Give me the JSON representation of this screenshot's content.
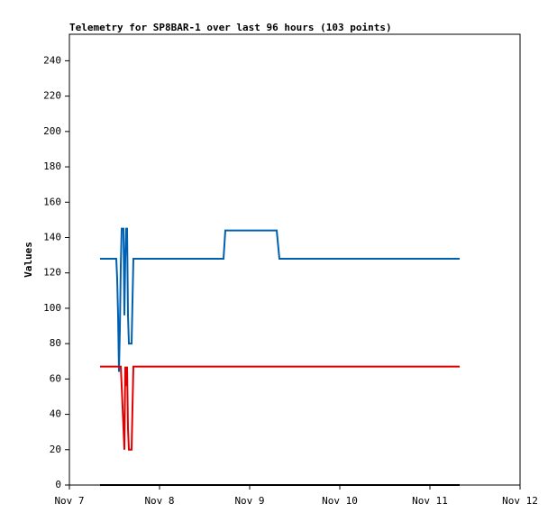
{
  "chart_data": {
    "type": "line",
    "title": "Telemetry for SP8BAR-1 over last 96 hours (103 points)",
    "y_label": "Values",
    "x": [
      7.34,
      7.52,
      7.53,
      7.54,
      7.55,
      7.56,
      7.57,
      7.58,
      7.6,
      7.61,
      7.62,
      7.63,
      7.64,
      7.65,
      7.66,
      7.69,
      7.7,
      7.71,
      8.71,
      8.73,
      9.3,
      9.33,
      11.33
    ],
    "series": [
      {
        "color": "#0060b0",
        "values": [
          128,
          128,
          117,
          96,
          64,
          88,
          124,
          145,
          145,
          96,
          128,
          145,
          145,
          96,
          80,
          80,
          104,
          128,
          128,
          144,
          144,
          128,
          128
        ]
      },
      {
        "color": "#e00000",
        "values": [
          67,
          67,
          67,
          67,
          67,
          67,
          67,
          56,
          32,
          20,
          67,
          56,
          67,
          32,
          20,
          20,
          44,
          67,
          67,
          67,
          67,
          67,
          67
        ]
      },
      {
        "color": "#000000",
        "values": [
          0,
          0,
          0,
          0,
          0,
          0,
          0,
          0,
          0,
          0,
          0,
          0,
          0,
          0,
          0,
          0,
          0,
          0,
          0,
          0,
          0,
          0,
          0
        ]
      }
    ],
    "xlim": [
      7,
      12
    ],
    "xticks": [
      {
        "value": 7,
        "label": "Nov 7"
      },
      {
        "value": 8,
        "label": "Nov 8"
      },
      {
        "value": 9,
        "label": "Nov 9"
      },
      {
        "value": 10,
        "label": "Nov 10"
      },
      {
        "value": 11,
        "label": "Nov 11"
      },
      {
        "value": 12,
        "label": "Nov 12"
      }
    ],
    "ylim": [
      0,
      255
    ],
    "yticks": [
      0,
      20,
      40,
      60,
      80,
      100,
      120,
      140,
      160,
      180,
      200,
      220,
      240
    ]
  }
}
